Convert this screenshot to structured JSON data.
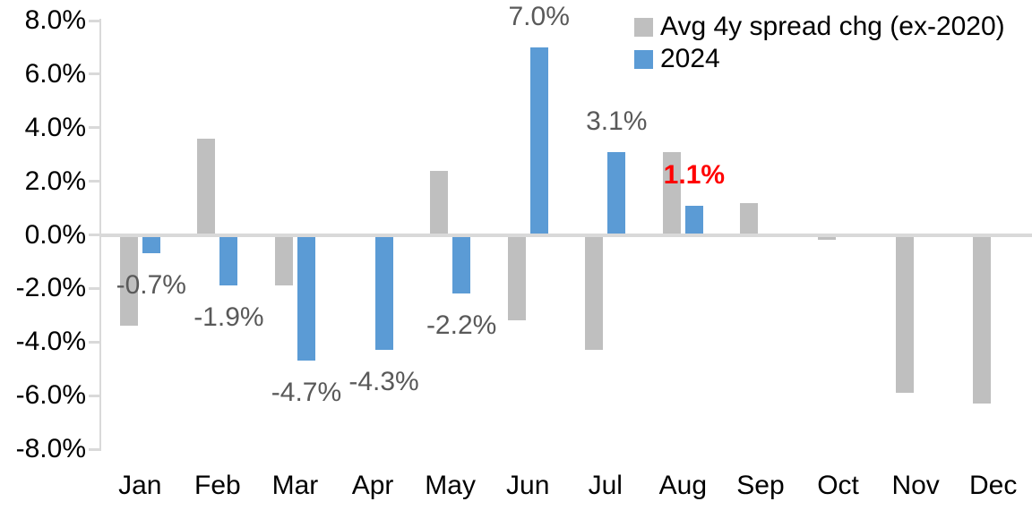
{
  "chart_data": {
    "type": "bar",
    "title": "",
    "xlabel": "",
    "ylabel": "",
    "categories": [
      "Jan",
      "Feb",
      "Mar",
      "Apr",
      "May",
      "Jun",
      "Jul",
      "Aug",
      "Sep",
      "Oct",
      "Nov",
      "Dec"
    ],
    "series": [
      {
        "name": "Avg 4y spread chg (ex-2020)",
        "color": "#BFBFBF",
        "values": [
          -3.4,
          3.6,
          -1.9,
          0.0,
          2.4,
          -3.2,
          -4.3,
          3.1,
          1.2,
          -0.2,
          -5.9,
          -6.3
        ]
      },
      {
        "name": "2024",
        "color": "#5B9BD5",
        "values": [
          -0.7,
          -1.9,
          -4.7,
          -4.3,
          -2.2,
          7.0,
          3.1,
          1.1,
          null,
          null,
          null,
          null
        ],
        "data_labels": [
          "-0.7%",
          "-1.9%",
          "-4.7%",
          "-4.3%",
          "-2.2%",
          "7.0%",
          "3.1%",
          "1.1%",
          "",
          "",
          "",
          ""
        ],
        "label_colors": [
          "#595959",
          "#595959",
          "#595959",
          "#595959",
          "#595959",
          "#595959",
          "#595959",
          "#FF0000",
          "",
          "",
          "",
          ""
        ],
        "label_bold": [
          false,
          false,
          false,
          false,
          false,
          false,
          false,
          true,
          false,
          false,
          false,
          false
        ]
      }
    ],
    "ylim": [
      -8,
      8
    ],
    "ytick_step": 2,
    "ytick_labels": [
      "8.0%",
      "6.0%",
      "4.0%",
      "2.0%",
      "0.0%",
      "-2.0%",
      "-4.0%",
      "-6.0%",
      "-8.0%"
    ],
    "grid": false,
    "legend_position": "top-right",
    "colors": {
      "axis_line": "#D9D9D9",
      "axis_text": "#000000",
      "data_label_default": "#595959",
      "data_label_emphasis": "#FF0000",
      "background": "#FFFFFF"
    }
  }
}
